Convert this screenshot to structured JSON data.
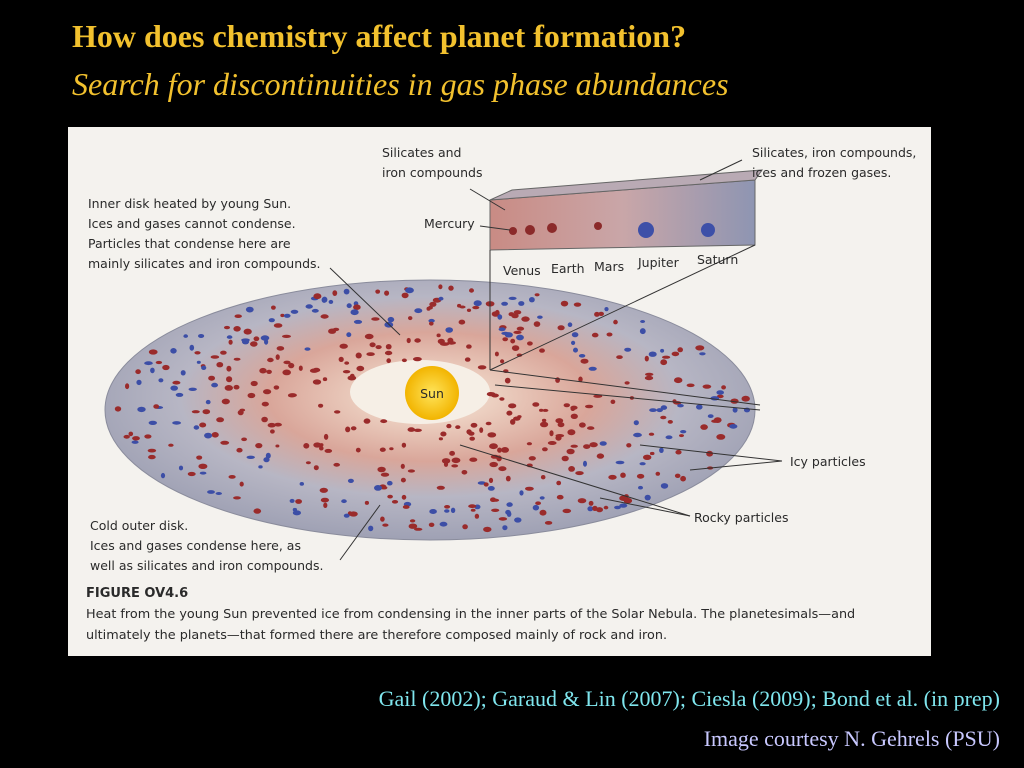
{
  "header": {
    "title": "How does chemistry affect planet formation?",
    "subtitle": "Search for discontinuities in gas phase abundances"
  },
  "figure": {
    "labels": {
      "silicates_iron": [
        "Silicates and",
        "iron compounds"
      ],
      "silicates_ices": [
        "Silicates, iron compounds,",
        "ices and frozen gases."
      ],
      "inner_disk": [
        "Inner disk heated by young Sun.",
        "Ices and gases cannot condense.",
        "Particles that condense here are",
        "mainly silicates and iron compounds."
      ],
      "mercury": "Mercury",
      "venus": "Venus",
      "earth": "Earth",
      "mars": "Mars",
      "jupiter": "Jupiter",
      "saturn": "Saturn",
      "sun": "Sun",
      "icy": "Icy particles",
      "rocky": "Rocky particles",
      "outer_disk": [
        "Cold outer disk.",
        "Ices and gases condense here, as",
        "well as silicates and iron compounds."
      ]
    },
    "figure_number": "FIGURE OV4.6",
    "caption": [
      "Heat from the young Sun prevented ice from condensing in the inner parts of the Solar Nebula. The planetesimals—and",
      "ultimately the planets—that formed there are therefore composed mainly of rock and iron."
    ]
  },
  "footer": {
    "references": "Gail (2002); Garaud & Lin (2007); Ciesla (2009); Bond et al. (in prep)",
    "credit": "Image courtesy N. Gehrels (PSU)"
  }
}
